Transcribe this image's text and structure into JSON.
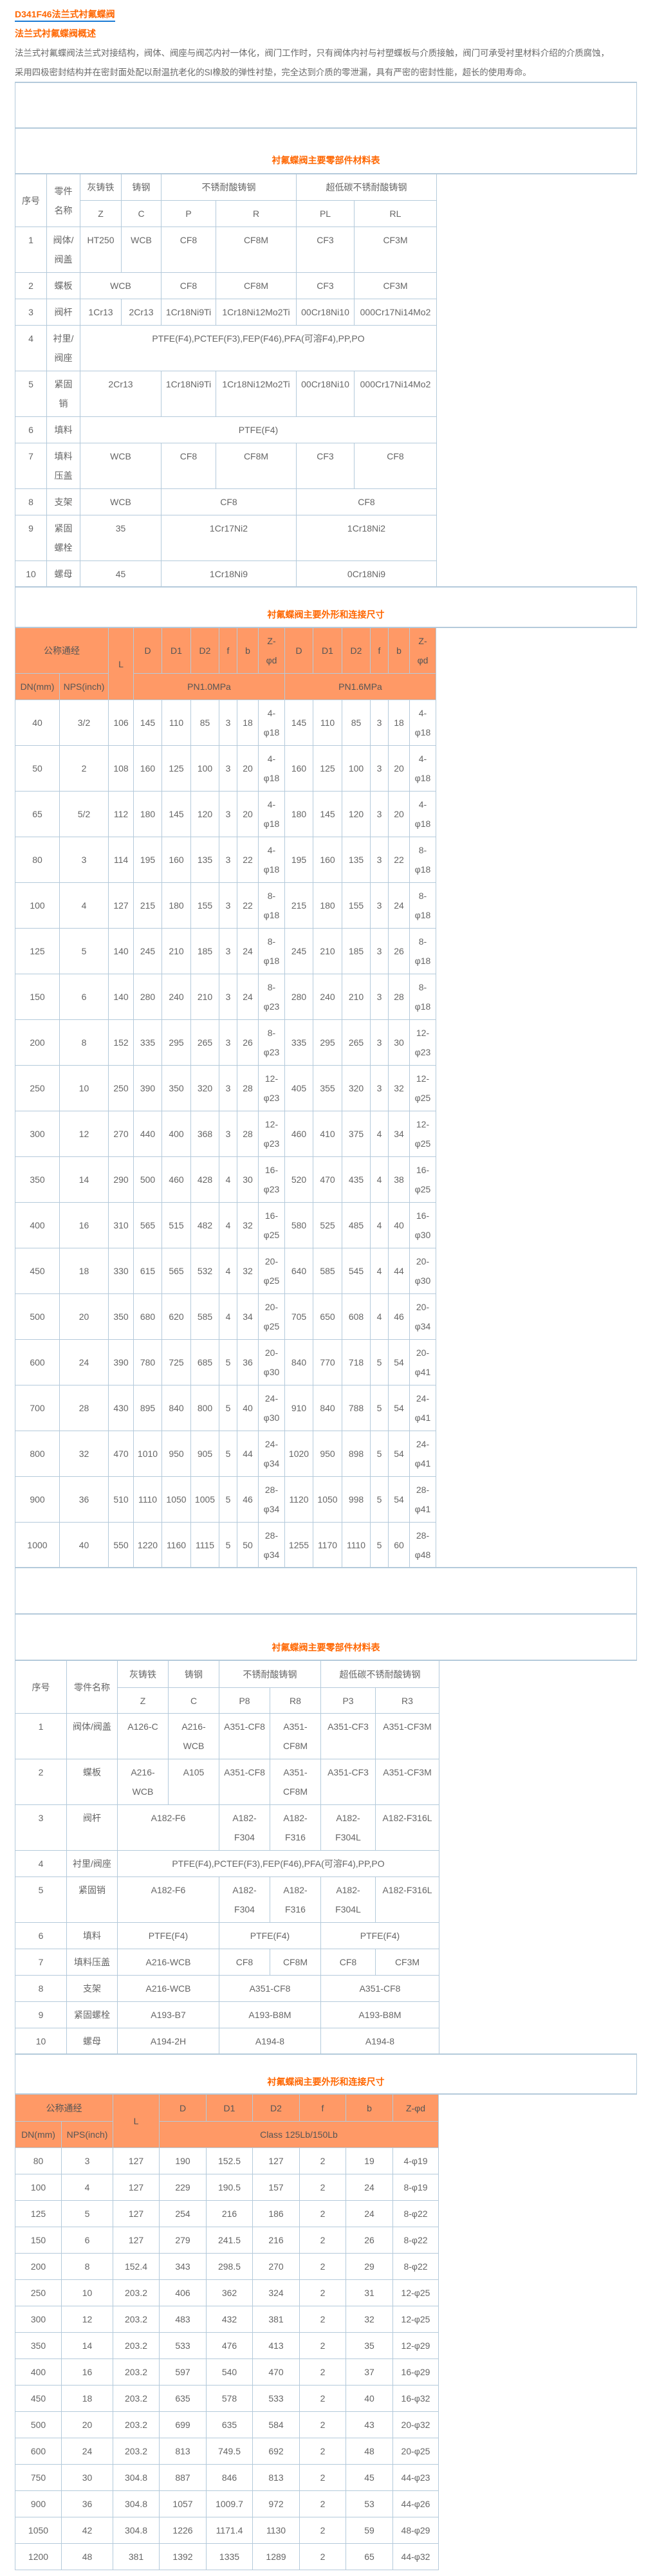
{
  "header": {
    "title": "D341F46法兰式衬氟蝶阀",
    "subtitle": "法兰式衬氟蝶阀概述",
    "paragraph": [
      "法兰式衬氟蝶阀法兰式对接结构，阀体、阀座与阀芯内衬一体化，阀门工作时，只有阀体内衬与衬塑蝶板与介质接触，阀门可承受衬里材料介绍的介质腐蚀，",
      "采用四极密封结构并在密封面处配以耐温抗老化的SI橡胶的弹性衬垫，完全达到介质的零泄漏，具有严密的密封性能，超长的使用寿命。"
    ]
  },
  "colors": {
    "accent": "#ff6600",
    "header_bg": "#ff9966",
    "border": "#b4cadb",
    "link_underline": "#1a7ad4"
  },
  "materials_gb": {
    "title": "衬氟蝶阀主要零部件材料表",
    "header": [
      [
        {
          "t": "序号",
          "rs": 2
        },
        {
          "t": "零件名称",
          "rs": 2
        },
        {
          "t": "灰铸铁"
        },
        {
          "t": "铸钢"
        },
        {
          "t": "不锈耐酸铸钢",
          "cs": 2
        },
        {
          "t": "超低碳不锈耐酸铸钢",
          "cs": 2
        }
      ],
      [
        {
          "t": "Z"
        },
        {
          "t": "C"
        },
        {
          "t": "P"
        },
        {
          "t": "R"
        },
        {
          "t": "PL"
        },
        {
          "t": "RL"
        }
      ]
    ],
    "rows": [
      [
        {
          "t": "1"
        },
        {
          "t": "阀体/阀盖"
        },
        {
          "t": "HT250"
        },
        {
          "t": "WCB"
        },
        {
          "t": "CF8"
        },
        {
          "t": "CF8M"
        },
        {
          "t": "CF3"
        },
        {
          "t": "CF3M"
        }
      ],
      [
        {
          "t": "2"
        },
        {
          "t": "蝶板"
        },
        {
          "t": "WCB",
          "cs": 2
        },
        {
          "t": "CF8"
        },
        {
          "t": "CF8M"
        },
        {
          "t": "CF3"
        },
        {
          "t": "CF3M"
        }
      ],
      [
        {
          "t": "3"
        },
        {
          "t": "阀杆"
        },
        {
          "t": "1Cr13"
        },
        {
          "t": "2Cr13"
        },
        {
          "t": "1Cr18Ni9Ti"
        },
        {
          "t": "1Cr18Ni12Mo2Ti"
        },
        {
          "t": "00Cr18Ni10"
        },
        {
          "t": "000Cr17Ni14Mo2"
        }
      ],
      [
        {
          "t": "4"
        },
        {
          "t": "衬里/阀座"
        },
        {
          "t": "PTFE(F4),PCTEF(F3),FEP(F46),PFA(可溶F4),PP,PO",
          "cs": 6
        }
      ],
      [
        {
          "t": "5"
        },
        {
          "t": "紧固销"
        },
        {
          "t": "2Cr13",
          "cs": 2
        },
        {
          "t": "1Cr18Ni9Ti"
        },
        {
          "t": "1Cr18Ni12Mo2Ti"
        },
        {
          "t": "00Cr18Ni10"
        },
        {
          "t": "000Cr17Ni14Mo2"
        }
      ],
      [
        {
          "t": "6"
        },
        {
          "t": "填料"
        },
        {
          "t": "PTFE(F4)",
          "cs": 6
        }
      ],
      [
        {
          "t": "7"
        },
        {
          "t": "填料压盖"
        },
        {
          "t": "WCB",
          "cs": 2
        },
        {
          "t": "CF8"
        },
        {
          "t": "CF8M"
        },
        {
          "t": "CF3"
        },
        {
          "t": "CF8"
        }
      ],
      [
        {
          "t": "8"
        },
        {
          "t": "支架"
        },
        {
          "t": "WCB",
          "cs": 2
        },
        {
          "t": "CF8",
          "cs": 2
        },
        {
          "t": "CF8",
          "cs": 2
        }
      ],
      [
        {
          "t": "9"
        },
        {
          "t": "紧固螺栓"
        },
        {
          "t": "35",
          "cs": 2
        },
        {
          "t": "1Cr17Ni2",
          "cs": 2
        },
        {
          "t": "1Cr18Ni2",
          "cs": 2
        }
      ],
      [
        {
          "t": "10"
        },
        {
          "t": "螺母"
        },
        {
          "t": "45",
          "cs": 2
        },
        {
          "t": "1Cr18Ni9",
          "cs": 2
        },
        {
          "t": "0Cr18Ni9",
          "cs": 2
        }
      ]
    ]
  },
  "dimensions_pn": {
    "title": "衬氟蝶阀主要外形和连接尺寸",
    "header": [
      [
        {
          "t": "公称通经",
          "cs": 2
        },
        {
          "t": "L",
          "rs": 2
        },
        {
          "t": "D"
        },
        {
          "t": "D1"
        },
        {
          "t": "D2"
        },
        {
          "t": "f"
        },
        {
          "t": "b"
        },
        {
          "t": "Z-φd"
        },
        {
          "t": "D"
        },
        {
          "t": "D1"
        },
        {
          "t": "D2"
        },
        {
          "t": "f"
        },
        {
          "t": "b"
        },
        {
          "t": "Z-φd"
        }
      ],
      [
        {
          "t": "DN(mm)"
        },
        {
          "t": "NPS(inch)"
        },
        {
          "t": "PN1.0MPa",
          "cs": 6
        },
        {
          "t": "PN1.6MPa",
          "cs": 6
        }
      ]
    ],
    "rows": [
      [
        "40",
        "3/2",
        "106",
        "145",
        "110",
        "85",
        "3",
        "18",
        "4-φ18",
        "145",
        "110",
        "85",
        "3",
        "18",
        "4-φ18"
      ],
      [
        "50",
        "2",
        "108",
        "160",
        "125",
        "100",
        "3",
        "20",
        "4-φ18",
        "160",
        "125",
        "100",
        "3",
        "20",
        "4-φ18"
      ],
      [
        "65",
        "5/2",
        "112",
        "180",
        "145",
        "120",
        "3",
        "20",
        "4-φ18",
        "180",
        "145",
        "120",
        "3",
        "20",
        "4-φ18"
      ],
      [
        "80",
        "3",
        "114",
        "195",
        "160",
        "135",
        "3",
        "22",
        "4-φ18",
        "195",
        "160",
        "135",
        "3",
        "22",
        "8-φ18"
      ],
      [
        "100",
        "4",
        "127",
        "215",
        "180",
        "155",
        "3",
        "22",
        "8-φ18",
        "215",
        "180",
        "155",
        "3",
        "24",
        "8-φ18"
      ],
      [
        "125",
        "5",
        "140",
        "245",
        "210",
        "185",
        "3",
        "24",
        "8-φ18",
        "245",
        "210",
        "185",
        "3",
        "26",
        "8-φ18"
      ],
      [
        "150",
        "6",
        "140",
        "280",
        "240",
        "210",
        "3",
        "24",
        "8-φ23",
        "280",
        "240",
        "210",
        "3",
        "28",
        "8-φ18"
      ],
      [
        "200",
        "8",
        "152",
        "335",
        "295",
        "265",
        "3",
        "26",
        "8-φ23",
        "335",
        "295",
        "265",
        "3",
        "30",
        "12-φ23"
      ],
      [
        "250",
        "10",
        "250",
        "390",
        "350",
        "320",
        "3",
        "28",
        "12-φ23",
        "405",
        "355",
        "320",
        "3",
        "32",
        "12-φ25"
      ],
      [
        "300",
        "12",
        "270",
        "440",
        "400",
        "368",
        "3",
        "28",
        "12-φ23",
        "460",
        "410",
        "375",
        "4",
        "34",
        "12-φ25"
      ],
      [
        "350",
        "14",
        "290",
        "500",
        "460",
        "428",
        "4",
        "30",
        "16-φ23",
        "520",
        "470",
        "435",
        "4",
        "38",
        "16-φ25"
      ],
      [
        "400",
        "16",
        "310",
        "565",
        "515",
        "482",
        "4",
        "32",
        "16-φ25",
        "580",
        "525",
        "485",
        "4",
        "40",
        "16-φ30"
      ],
      [
        "450",
        "18",
        "330",
        "615",
        "565",
        "532",
        "4",
        "32",
        "20-φ25",
        "640",
        "585",
        "545",
        "4",
        "44",
        "20-φ30"
      ],
      [
        "500",
        "20",
        "350",
        "680",
        "620",
        "585",
        "4",
        "34",
        "20-φ25",
        "705",
        "650",
        "608",
        "4",
        "46",
        "20-φ34"
      ],
      [
        "600",
        "24",
        "390",
        "780",
        "725",
        "685",
        "5",
        "36",
        "20-φ30",
        "840",
        "770",
        "718",
        "5",
        "54",
        "20-φ41"
      ],
      [
        "700",
        "28",
        "430",
        "895",
        "840",
        "800",
        "5",
        "40",
        "24-φ30",
        "910",
        "840",
        "788",
        "5",
        "54",
        "24-φ41"
      ],
      [
        "800",
        "32",
        "470",
        "1010",
        "950",
        "905",
        "5",
        "44",
        "24-φ34",
        "1020",
        "950",
        "898",
        "5",
        "54",
        "24-φ41"
      ],
      [
        "900",
        "36",
        "510",
        "1110",
        "1050",
        "1005",
        "5",
        "46",
        "28-φ34",
        "1120",
        "1050",
        "998",
        "5",
        "54",
        "28-φ41"
      ],
      [
        "1000",
        "40",
        "550",
        "1220",
        "1160",
        "1115",
        "5",
        "50",
        "28-φ34",
        "1255",
        "1170",
        "1110",
        "5",
        "60",
        "28-φ48"
      ]
    ]
  },
  "materials_astm": {
    "title": "衬氟蝶阀主要零部件材料表",
    "header": [
      [
        {
          "t": "序号",
          "rs": 2
        },
        {
          "t": "零件名称",
          "rs": 2
        },
        {
          "t": "灰铸铁"
        },
        {
          "t": "铸钢"
        },
        {
          "t": "不锈耐酸铸钢",
          "cs": 2
        },
        {
          "t": "超低碳不锈耐酸铸钢",
          "cs": 2
        }
      ],
      [
        {
          "t": "Z"
        },
        {
          "t": "C"
        },
        {
          "t": "P8"
        },
        {
          "t": "R8"
        },
        {
          "t": "P3"
        },
        {
          "t": "R3"
        }
      ]
    ],
    "rows": [
      [
        {
          "t": "1"
        },
        {
          "t": "阀体/阀盖"
        },
        {
          "t": "A126-C"
        },
        {
          "t": "A216-WCB"
        },
        {
          "t": "A351-CF8"
        },
        {
          "t": "A351-CF8M"
        },
        {
          "t": "A351-CF3"
        },
        {
          "t": "A351-CF3M"
        }
      ],
      [
        {
          "t": "2"
        },
        {
          "t": "蝶板"
        },
        {
          "t": "A216-WCB"
        },
        {
          "t": "A105"
        },
        {
          "t": "A351-CF8"
        },
        {
          "t": "A351-CF8M"
        },
        {
          "t": "A351-CF3"
        },
        {
          "t": "A351-CF3M"
        }
      ],
      [
        {
          "t": "3"
        },
        {
          "t": "阀杆"
        },
        {
          "t": "A182-F6",
          "cs": 2
        },
        {
          "t": "A182-F304"
        },
        {
          "t": "A182-F316"
        },
        {
          "t": "A182-F304L"
        },
        {
          "t": "A182-F316L"
        }
      ],
      [
        {
          "t": "4"
        },
        {
          "t": "衬里/阀座"
        },
        {
          "t": "PTFE(F4),PCTEF(F3),FEP(F46),PFA(可溶F4),PP,PO",
          "cs": 6
        }
      ],
      [
        {
          "t": "5"
        },
        {
          "t": "紧固销"
        },
        {
          "t": "A182-F6",
          "cs": 2
        },
        {
          "t": "A182-F304"
        },
        {
          "t": "A182-F316"
        },
        {
          "t": "A182-F304L"
        },
        {
          "t": "A182-F316L"
        }
      ],
      [
        {
          "t": "6"
        },
        {
          "t": "填料"
        },
        {
          "t": "PTFE(F4)",
          "cs": 2
        },
        {
          "t": "PTFE(F4)",
          "cs": 2
        },
        {
          "t": "PTFE(F4)",
          "cs": 2
        }
      ],
      [
        {
          "t": "7"
        },
        {
          "t": "填料压盖"
        },
        {
          "t": "A216-WCB",
          "cs": 2
        },
        {
          "t": "CF8"
        },
        {
          "t": "CF8M"
        },
        {
          "t": "CF8"
        },
        {
          "t": "CF3M"
        }
      ],
      [
        {
          "t": "8"
        },
        {
          "t": "支架"
        },
        {
          "t": "A216-WCB",
          "cs": 2
        },
        {
          "t": "A351-CF8",
          "cs": 2
        },
        {
          "t": "A351-CF8",
          "cs": 2
        }
      ],
      [
        {
          "t": "9"
        },
        {
          "t": "紧固螺栓"
        },
        {
          "t": "A193-B7",
          "cs": 2
        },
        {
          "t": "A193-B8M",
          "cs": 2
        },
        {
          "t": "A193-B8M",
          "cs": 2
        }
      ],
      [
        {
          "t": "10"
        },
        {
          "t": "螺母"
        },
        {
          "t": "A194-2H",
          "cs": 2
        },
        {
          "t": "A194-8",
          "cs": 2
        },
        {
          "t": "A194-8",
          "cs": 2
        }
      ]
    ]
  },
  "dimensions_class": {
    "title": "衬氟蝶阀主要外形和连接尺寸",
    "header": [
      [
        {
          "t": "公称通经",
          "cs": 2
        },
        {
          "t": "L",
          "rs": 2
        },
        {
          "t": "D"
        },
        {
          "t": "D1"
        },
        {
          "t": "D2"
        },
        {
          "t": "f"
        },
        {
          "t": "b"
        },
        {
          "t": "Z-φd"
        }
      ],
      [
        {
          "t": "DN(mm)"
        },
        {
          "t": "NPS(inch)"
        },
        {
          "t": "Class 125Lb/150Lb",
          "cs": 6
        }
      ]
    ],
    "rows": [
      [
        "80",
        "3",
        "127",
        "190",
        "152.5",
        "127",
        "2",
        "19",
        "4-φ19"
      ],
      [
        "100",
        "4",
        "127",
        "229",
        "190.5",
        "157",
        "2",
        "24",
        "8-φ19"
      ],
      [
        "125",
        "5",
        "127",
        "254",
        "216",
        "186",
        "2",
        "24",
        "8-φ22"
      ],
      [
        "150",
        "6",
        "127",
        "279",
        "241.5",
        "216",
        "2",
        "26",
        "8-φ22"
      ],
      [
        "200",
        "8",
        "152.4",
        "343",
        "298.5",
        "270",
        "2",
        "29",
        "8-φ22"
      ],
      [
        "250",
        "10",
        "203.2",
        "406",
        "362",
        "324",
        "2",
        "31",
        "12-φ25"
      ],
      [
        "300",
        "12",
        "203.2",
        "483",
        "432",
        "381",
        "2",
        "32",
        "12-φ25"
      ],
      [
        "350",
        "14",
        "203.2",
        "533",
        "476",
        "413",
        "2",
        "35",
        "12-φ29"
      ],
      [
        "400",
        "16",
        "203.2",
        "597",
        "540",
        "470",
        "2",
        "37",
        "16-φ29"
      ],
      [
        "450",
        "18",
        "203.2",
        "635",
        "578",
        "533",
        "2",
        "40",
        "16-φ32"
      ],
      [
        "500",
        "20",
        "203.2",
        "699",
        "635",
        "584",
        "2",
        "43",
        "20-φ32"
      ],
      [
        "600",
        "24",
        "203.2",
        "813",
        "749.5",
        "692",
        "2",
        "48",
        "20-φ25"
      ],
      [
        "750",
        "30",
        "304.8",
        "887",
        "846",
        "813",
        "2",
        "45",
        "44-φ23"
      ],
      [
        "900",
        "36",
        "304.8",
        "1057",
        "1009.7",
        "972",
        "2",
        "53",
        "44-φ26"
      ],
      [
        "1050",
        "42",
        "304.8",
        "1226",
        "1171.4",
        "1130",
        "2",
        "59",
        "48-φ29"
      ],
      [
        "1200",
        "48",
        "381",
        "1392",
        "1335",
        "1289",
        "2",
        "65",
        "44-φ32"
      ]
    ]
  }
}
